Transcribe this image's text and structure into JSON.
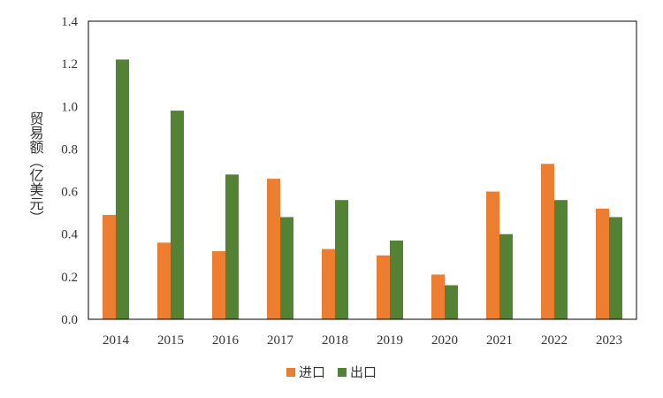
{
  "chart_data": {
    "type": "bar",
    "categories": [
      "2014",
      "2015",
      "2016",
      "2017",
      "2018",
      "2019",
      "2020",
      "2021",
      "2022",
      "2023"
    ],
    "series": [
      {
        "name": "进口",
        "color": "#ED7D31",
        "values": [
          0.49,
          0.36,
          0.32,
          0.66,
          0.33,
          0.3,
          0.21,
          0.6,
          0.73,
          0.52
        ]
      },
      {
        "name": "出口",
        "color": "#548235",
        "values": [
          1.22,
          0.98,
          0.68,
          0.48,
          0.56,
          0.37,
          0.16,
          0.4,
          0.56,
          0.48
        ]
      }
    ],
    "ylabel": "贸易额（亿美元）",
    "ylim": [
      0,
      1.4
    ],
    "yticks": [
      "0.0",
      "0.2",
      "0.4",
      "0.6",
      "0.8",
      "1.0",
      "1.2",
      "1.4"
    ],
    "grid": false,
    "legend_position": "bottom"
  }
}
